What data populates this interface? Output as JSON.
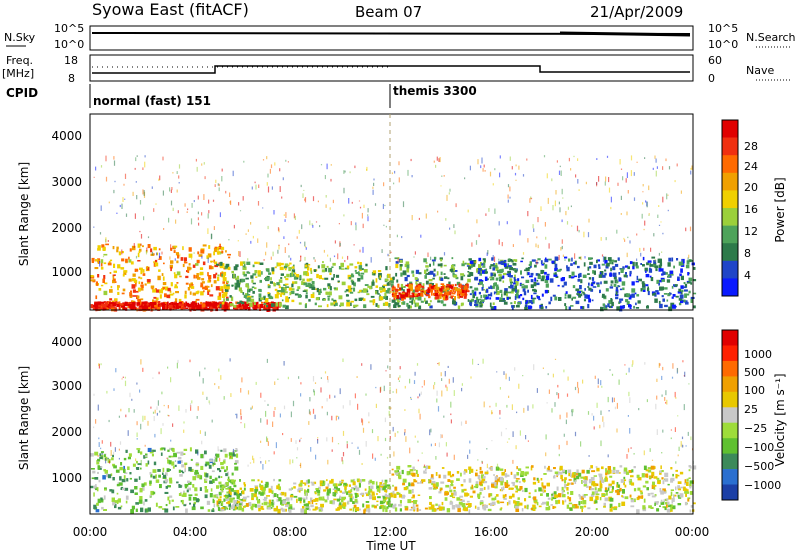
{
  "header": {
    "title": "Syowa East (fitACF)",
    "beam": "Beam 07",
    "date": "21/Apr/2009"
  },
  "strips": {
    "nsky_label": "N.Sky",
    "nsky_ticks": [
      "10^5",
      "10^0"
    ],
    "nsearch_ticks": [
      "10^5",
      "10^0"
    ],
    "nsearch_label": "N.Search",
    "freq_label": "Freq.",
    "freq_unit": "[MHz]",
    "freq_ticks": [
      "18",
      "8"
    ],
    "nave_ticks": [
      "60",
      "0"
    ],
    "nave_label": "Nave",
    "cpid_label": "CPID",
    "cpid_segments": [
      "normal (fast) 151",
      "themis 3300"
    ]
  },
  "power_panel": {
    "ylabel": "Slant Range [km]",
    "yticks": [
      "4000",
      "3000",
      "2000",
      "1000"
    ],
    "colorbar_label": "Power [dB]",
    "colorbar_ticks": [
      "28",
      "24",
      "20",
      "16",
      "12",
      "8",
      "4"
    ],
    "colors": [
      "#0a1aff",
      "#1f45c8",
      "#2d7a4a",
      "#4ea35a",
      "#9bcf3a",
      "#f0d000",
      "#f0a000",
      "#ff6a00",
      "#f03010",
      "#e00000"
    ]
  },
  "velocity_panel": {
    "ylabel": "Slant Range [km]",
    "yticks": [
      "4000",
      "3000",
      "2000",
      "1000"
    ],
    "colorbar_label": "Velocity [m s⁻¹]",
    "colorbar_ticks": [
      "1000",
      "500",
      "100",
      "25",
      "−25",
      "−100",
      "−500",
      "−1000"
    ],
    "colors": [
      "#1b3fa6",
      "#2a6fd0",
      "#3c8a5a",
      "#5fc030",
      "#9edc3a",
      "#c8c8c8",
      "#e8c800",
      "#f0a000",
      "#ff6a00",
      "#ff2000",
      "#e00000"
    ]
  },
  "xaxis": {
    "ticks": [
      "00:00",
      "04:00",
      "08:00",
      "12:00",
      "16:00",
      "20:00",
      "00:00"
    ],
    "label": "Time UT"
  },
  "chart_data": {
    "type": "heatmap",
    "title": "Syowa East (fitACF)",
    "xlabel": "Time UT",
    "ylabel": "Slant Range [km]",
    "xlim": [
      "00:00",
      "24:00"
    ],
    "ylim": [
      200,
      4600
    ],
    "panels": [
      {
        "name": "Power [dB]",
        "range": [
          0,
          30
        ],
        "echo_regions": [
          {
            "t_start": 0.0,
            "t_end": 5.5,
            "range_km": [
              250,
              1700
            ],
            "value": 20
          },
          {
            "t_start": 0.0,
            "t_end": 7.5,
            "range_km": [
              250,
              400
            ],
            "value": 28
          },
          {
            "t_start": 5.0,
            "t_end": 12.0,
            "range_km": [
              300,
              1300
            ],
            "value": 12
          },
          {
            "t_start": 12.0,
            "t_end": 17.0,
            "range_km": [
              300,
              1400
            ],
            "value": 10
          },
          {
            "t_start": 12.0,
            "t_end": 15.0,
            "range_km": [
              500,
              800
            ],
            "value": 24
          },
          {
            "t_start": 15.0,
            "t_end": 24.0,
            "range_km": [
              250,
              1400
            ],
            "value": 6
          }
        ]
      },
      {
        "name": "Velocity [m s-1]",
        "range": [
          -1000,
          1000
        ],
        "echo_regions": [
          {
            "t_start": 0.0,
            "t_end": 6.0,
            "range_km": [
              300,
              1700
            ],
            "value": -300
          },
          {
            "t_start": 5.0,
            "t_end": 12.0,
            "range_km": [
              300,
              1000
            ],
            "value": -60
          },
          {
            "t_start": 12.0,
            "t_end": 17.0,
            "range_km": [
              300,
              1300
            ],
            "value": 60
          },
          {
            "t_start": 17.0,
            "t_end": 24.0,
            "range_km": [
              300,
              1300
            ],
            "value": 0
          }
        ]
      }
    ],
    "cpid_changes": [
      {
        "time": "00:00",
        "label": "normal (fast) 151"
      },
      {
        "time": "12:00",
        "label": "themis 3300"
      }
    ]
  }
}
